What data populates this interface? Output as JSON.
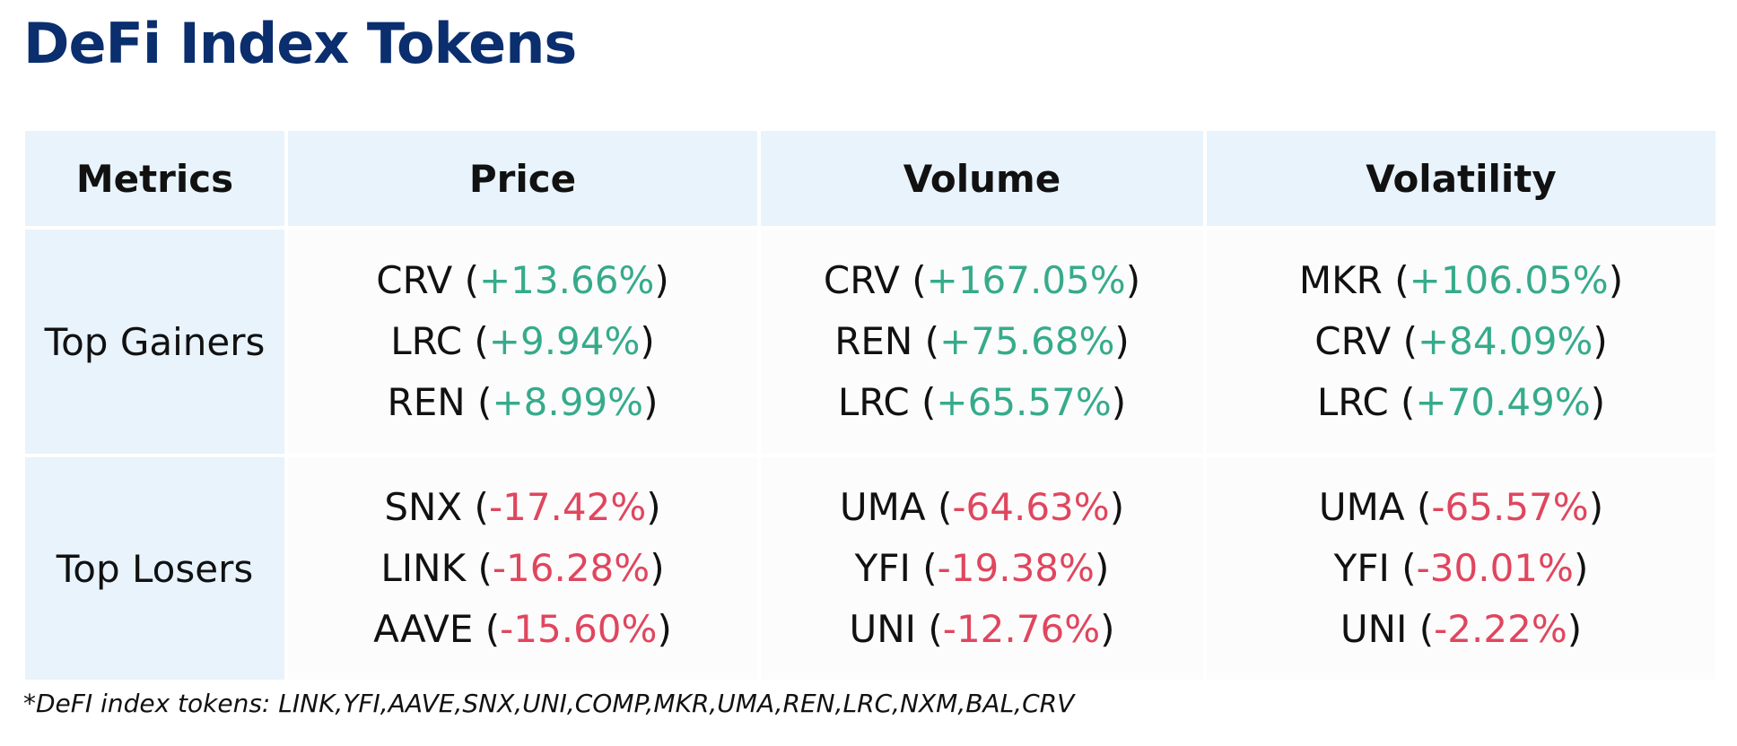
{
  "title": "DeFi Index Tokens",
  "columns": [
    "Metrics",
    "Price",
    "Volume",
    "Volatility"
  ],
  "rows": [
    {
      "label": "Top Gainers",
      "cells": [
        [
          {
            "token": "CRV",
            "change": "+13.66%"
          },
          {
            "token": "LRC",
            "change": "+9.94%"
          },
          {
            "token": "REN",
            "change": "+8.99%"
          }
        ],
        [
          {
            "token": "CRV",
            "change": "+167.05%"
          },
          {
            "token": "REN",
            "change": "+75.68%"
          },
          {
            "token": "LRC",
            "change": "+65.57%"
          }
        ],
        [
          {
            "token": "MKR",
            "change": "+106.05%"
          },
          {
            "token": "CRV",
            "change": "+84.09%"
          },
          {
            "token": "LRC",
            "change": "+70.49%"
          }
        ]
      ]
    },
    {
      "label": "Top Losers",
      "cells": [
        [
          {
            "token": "SNX",
            "change": "-17.42%"
          },
          {
            "token": "LINK",
            "change": "-16.28%"
          },
          {
            "token": "AAVE",
            "change": "-15.60%"
          }
        ],
        [
          {
            "token": "UMA",
            "change": "-64.63%"
          },
          {
            "token": "YFI",
            "change": "-19.38%"
          },
          {
            "token": "UNI",
            "change": "-12.76%"
          }
        ],
        [
          {
            "token": "UMA",
            "change": "-65.57%"
          },
          {
            "token": "YFI",
            "change": "-30.01%"
          },
          {
            "token": "UNI",
            "change": "-2.22%"
          }
        ]
      ]
    }
  ],
  "footnote": "*DeFI index tokens: LINK,YFI,AAVE,SNX,UNI,COMP,MKR,UMA,REN,LRC,NXM,BAL,CRV",
  "colors": {
    "title": "#0a2e6e",
    "header_bg": "#e8f3fc",
    "positive": "#36ab8b",
    "negative": "#e0465e"
  }
}
